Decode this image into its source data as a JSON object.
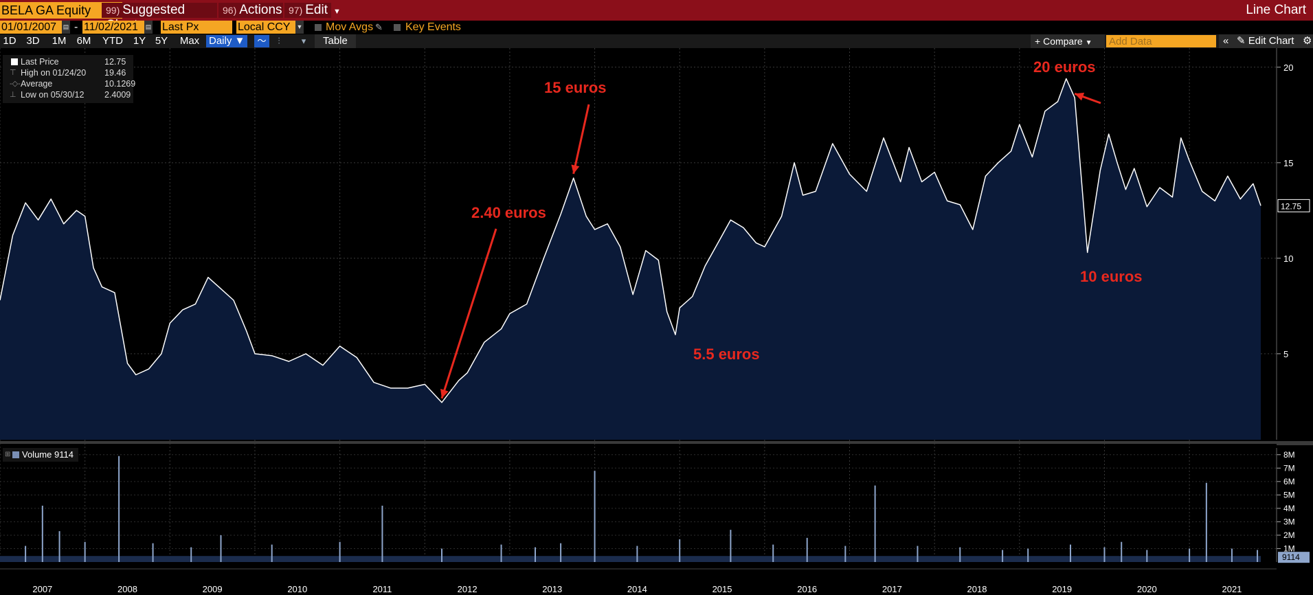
{
  "header": {
    "ticker": "BELA GA Equity",
    "menus": [
      {
        "num": "99)",
        "label": "Suggested Charts"
      },
      {
        "num": "96)",
        "label": "Actions"
      },
      {
        "num": "97)",
        "label": "Edit"
      }
    ],
    "chart_type": "Line Chart"
  },
  "settings": {
    "start_date": "01/01/2007",
    "date_sep": "-",
    "end_date": "11/02/2021",
    "field": "Last Px",
    "currency": "Local CCY",
    "mov_avgs": "Mov Avgs",
    "key_events": "Key Events"
  },
  "toolbar": {
    "periods": [
      "1D",
      "3D",
      "1M",
      "6M",
      "YTD",
      "1Y",
      "5Y",
      "Max"
    ],
    "frequency": "Daily",
    "table_label": "Table",
    "compare_label": "Compare",
    "add_data_placeholder": "Add Data",
    "edit_chart_label": "Edit Chart"
  },
  "legend": {
    "items": [
      {
        "label": "Last Price",
        "value": "12.75"
      },
      {
        "label": "High on 01/24/20",
        "value": "19.46"
      },
      {
        "label": "Average",
        "value": "10.1269"
      },
      {
        "label": "Low on 05/30/12",
        "value": "2.4009"
      }
    ]
  },
  "volume_legend": {
    "label": "Volume",
    "value": "9114"
  },
  "annotations": [
    {
      "text": "2.40 euros"
    },
    {
      "text": "15 euros"
    },
    {
      "text": "5.5 euros"
    },
    {
      "text": "20 euros"
    },
    {
      "text": "10 euros"
    }
  ],
  "colors": {
    "area_fill": "#0b1a38",
    "line": "#ffffff",
    "annotation": "#e8281e",
    "volume": "#8ea6cc",
    "header_bg": "#8b0f1a",
    "field_bg": "#f5a623"
  },
  "chart_data": [
    {
      "type": "area",
      "title": "",
      "y_ticks": [
        5,
        10,
        15,
        20
      ],
      "ylim": [
        0.5,
        21
      ],
      "last_value_label": "12.75",
      "x_ticks": [
        "2007",
        "2008",
        "2009",
        "2010",
        "2011",
        "2012",
        "2013",
        "2014",
        "2015",
        "2016",
        "2017",
        "2018",
        "2019",
        "2020",
        "2021"
      ],
      "series": [
        {
          "x": [
            2007.0,
            2007.15,
            2007.3,
            2007.45,
            2007.6,
            2007.75,
            2007.9,
            2008.0,
            2008.1,
            2008.2,
            2008.35,
            2008.5,
            2008.6,
            2008.75,
            2008.9,
            2009.0,
            2009.15,
            2009.3,
            2009.45,
            2009.6,
            2009.75,
            2009.9,
            2010.0,
            2010.2,
            2010.4,
            2010.6,
            2010.8,
            2011.0,
            2011.2,
            2011.4,
            2011.6,
            2011.8,
            2012.0,
            2012.2,
            2012.4,
            2012.5,
            2012.7,
            2012.9,
            2013.0,
            2013.2,
            2013.4,
            2013.6,
            2013.75,
            2013.9,
            2014.0,
            2014.15,
            2014.3,
            2014.45,
            2014.6,
            2014.75,
            2014.85,
            2014.95,
            2015.0,
            2015.15,
            2015.3,
            2015.45,
            2015.6,
            2015.75,
            2015.9,
            2016.0,
            2016.2,
            2016.35,
            2016.45,
            2016.6,
            2016.8,
            2016.9,
            2017.0,
            2017.2,
            2017.4,
            2017.6,
            2017.7,
            2017.85,
            2018.0,
            2018.15,
            2018.3,
            2018.45,
            2018.6,
            2018.75,
            2018.9,
            2019.0,
            2019.15,
            2019.3,
            2019.45,
            2019.55,
            2019.65,
            2019.8,
            2019.95,
            2020.05,
            2020.15,
            2020.25,
            2020.35,
            2020.5,
            2020.65,
            2020.8,
            2020.9,
            2021.0,
            2021.15,
            2021.3,
            2021.45,
            2021.6,
            2021.75,
            2021.84
          ],
          "y": [
            7.8,
            11.2,
            12.9,
            12.0,
            13.1,
            11.8,
            12.5,
            12.2,
            9.5,
            8.5,
            8.2,
            4.5,
            3.9,
            4.2,
            5.0,
            6.6,
            7.3,
            7.6,
            9.0,
            8.4,
            7.8,
            6.2,
            5.0,
            4.9,
            4.6,
            5.0,
            4.4,
            5.4,
            4.8,
            3.5,
            3.2,
            3.2,
            3.4,
            2.45,
            3.6,
            4.0,
            5.6,
            6.3,
            7.1,
            7.6,
            10.0,
            12.3,
            14.2,
            12.2,
            11.5,
            11.8,
            10.6,
            8.1,
            10.4,
            9.9,
            7.2,
            6.0,
            7.4,
            8.0,
            9.6,
            10.8,
            12.0,
            11.6,
            10.8,
            10.6,
            12.2,
            15.0,
            13.3,
            13.5,
            16.0,
            15.2,
            14.4,
            13.5,
            16.3,
            14.0,
            15.8,
            14.0,
            14.5,
            13.0,
            12.8,
            11.5,
            14.3,
            15.0,
            15.6,
            17.0,
            15.3,
            17.7,
            18.2,
            19.4,
            18.4,
            10.3,
            14.6,
            16.5,
            15.0,
            13.6,
            14.7,
            12.7,
            13.7,
            13.2,
            16.3,
            15.1,
            13.5,
            13.0,
            14.3,
            13.1,
            13.9,
            12.75
          ]
        }
      ]
    },
    {
      "type": "bar",
      "title": "",
      "y_ticks": [
        "1M",
        "2M",
        "3M",
        "4M",
        "5M",
        "6M",
        "7M",
        "8M"
      ],
      "ylim": [
        0,
        8.5
      ],
      "last_value_label": "9114",
      "series": [
        {
          "name": "Volume",
          "x": [
            2007.3,
            2007.5,
            2007.7,
            2008.0,
            2008.4,
            2008.8,
            2009.25,
            2009.6,
            2010.2,
            2011.0,
            2011.5,
            2012.2,
            2012.9,
            2013.3,
            2013.6,
            2014.0,
            2014.5,
            2015.0,
            2015.6,
            2016.1,
            2016.5,
            2016.95,
            2017.3,
            2017.8,
            2018.3,
            2018.8,
            2019.1,
            2019.6,
            2020.0,
            2020.2,
            2020.5,
            2021.0,
            2021.2,
            2021.5,
            2021.8
          ],
          "values": [
            1.2,
            4.2,
            2.3,
            1.5,
            7.9,
            1.4,
            1.1,
            2.0,
            1.3,
            1.5,
            4.2,
            1.0,
            1.3,
            1.1,
            1.4,
            6.8,
            1.2,
            1.7,
            2.4,
            1.3,
            1.8,
            1.2,
            5.7,
            1.2,
            1.1,
            0.9,
            1.0,
            1.3,
            1.1,
            1.5,
            0.9,
            1.0,
            5.9,
            1.0,
            0.9
          ]
        }
      ]
    }
  ]
}
